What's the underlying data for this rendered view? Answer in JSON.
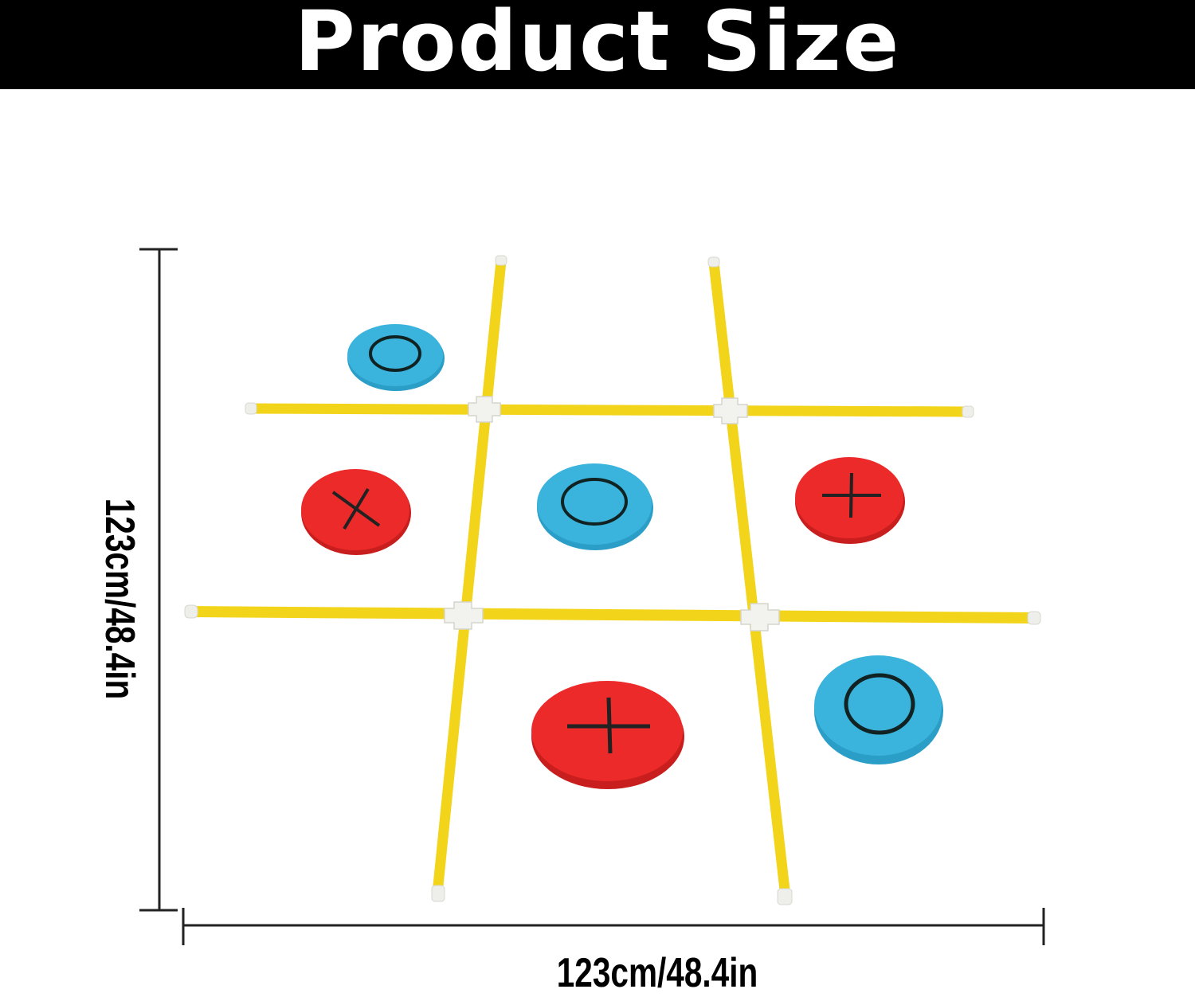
{
  "title": "Product Size",
  "dimensions": {
    "height_label": "123cm/48.4in",
    "width_label": "123cm/48.4in"
  },
  "colors": {
    "pole": "#f2d51a",
    "connector": "#f2f2ee",
    "blue_disc": "#3ab4dc",
    "red_disc": "#ec2a2a",
    "title_bar": "#000000"
  },
  "pieces": [
    {
      "color": "blue",
      "mark": "O"
    },
    {
      "color": "red",
      "mark": "X"
    },
    {
      "color": "blue",
      "mark": "O"
    },
    {
      "color": "red",
      "mark": "+"
    },
    {
      "color": "red",
      "mark": "+"
    },
    {
      "color": "blue",
      "mark": "O"
    }
  ]
}
